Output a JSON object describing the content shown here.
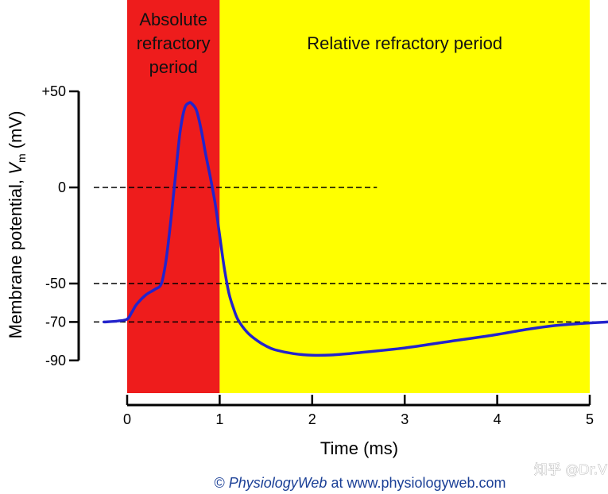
{
  "chart_data": {
    "type": "line",
    "title": "",
    "xlabel": "Time (ms)",
    "ylabel_main": "Membrane potential, ",
    "ylabel_var": "V",
    "ylabel_sub": "m",
    "ylabel_unit": " (mV)",
    "xlim": [
      0,
      5
    ],
    "ylim": [
      -90,
      50
    ],
    "x_ticks": [
      "0",
      "1",
      "2",
      "3",
      "4",
      "5"
    ],
    "y_ticks": [
      {
        "value": 50,
        "label": "+50"
      },
      {
        "value": 0,
        "label": "0"
      },
      {
        "value": -50,
        "label": "-50"
      },
      {
        "value": -70,
        "label": "-70"
      },
      {
        "value": -90,
        "label": "-90"
      }
    ],
    "regions": [
      {
        "lines": [
          "Absolute",
          "refractory",
          "period"
        ],
        "x_start": 0,
        "x_end": 1,
        "color": "#ee1c1c"
      },
      {
        "lines": [
          "Relative refractory period"
        ],
        "x_start": 1,
        "x_end": 5,
        "color": "#ffff00"
      }
    ],
    "reference_lines": [
      {
        "y": 0,
        "x_end": 2.7
      },
      {
        "y": -50,
        "x_end": 5.2
      },
      {
        "y": -70,
        "x_end": 5.2
      }
    ],
    "series": [
      {
        "color": "#2323cc",
        "x": [
          -0.25,
          -0.1,
          0.0,
          0.05,
          0.1,
          0.2,
          0.3,
          0.37,
          0.42,
          0.47,
          0.52,
          0.57,
          0.62,
          0.67,
          0.7,
          0.75,
          0.8,
          0.85,
          0.9,
          0.95,
          1.0,
          1.05,
          1.1,
          1.15,
          1.2,
          1.3,
          1.4,
          1.5,
          1.6,
          1.8,
          2.0,
          2.2,
          2.5,
          3.0,
          3.5,
          4.0,
          4.3,
          4.6,
          5.0,
          5.2
        ],
        "y": [
          -70,
          -69.5,
          -68.5,
          -65,
          -61,
          -56,
          -53,
          -50,
          -38,
          -18,
          5,
          28,
          41,
          44,
          43.5,
          40,
          30,
          17,
          5,
          -8,
          -25,
          -42,
          -55,
          -63,
          -69,
          -75.5,
          -79.5,
          -82.5,
          -84.5,
          -86.5,
          -87.3,
          -87.2,
          -86,
          -83.5,
          -80,
          -76.5,
          -74,
          -72,
          -70.5,
          -70
        ]
      }
    ]
  },
  "credit": {
    "copyright": "© ",
    "brand": "PhysiologyWeb",
    "rest": " at www.physiologyweb.com"
  },
  "watermark": "知乎 @Dr.VK"
}
